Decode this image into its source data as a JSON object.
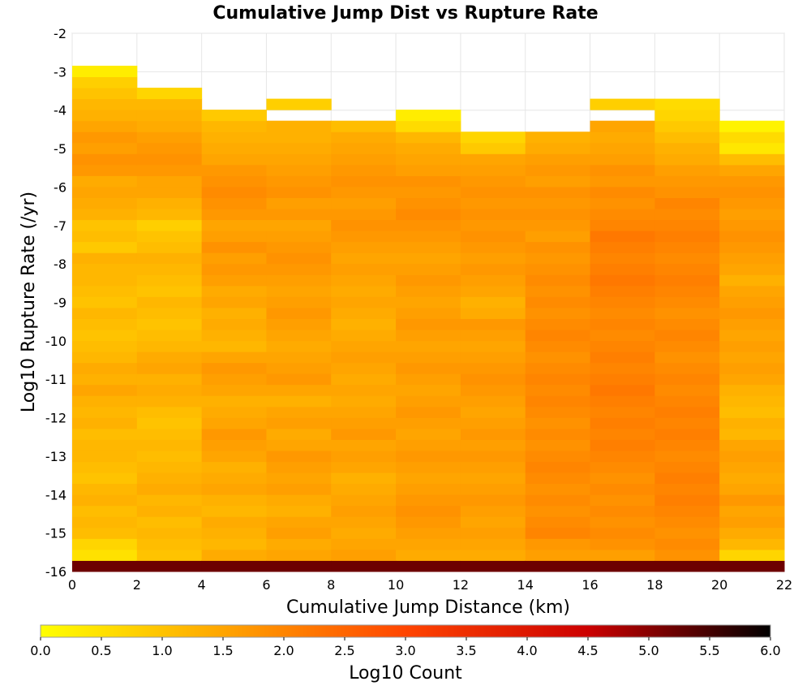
{
  "chart_data": {
    "type": "heatmap",
    "title": "Cumulative Jump Dist vs Rupture Rate",
    "xlabel": "Cumulative Jump Distance (km)",
    "ylabel": "Log10 Rupture Rate (/yr)",
    "xlim": [
      0,
      22
    ],
    "ylim": [
      -16,
      -2
    ],
    "x_ticks": [
      "0",
      "2",
      "4",
      "6",
      "8",
      "10",
      "12",
      "14",
      "16",
      "18",
      "20",
      "22"
    ],
    "y_ticks": [
      "-2",
      "-3",
      "-4",
      "-5",
      "-6",
      "-7",
      "-8",
      "-9",
      "-10",
      "-11",
      "-12",
      "-13",
      "-14",
      "-15",
      "-16"
    ],
    "x_bin_edges": [
      0,
      2,
      4,
      6,
      8,
      10,
      12,
      14,
      16,
      18,
      20,
      22
    ],
    "y_bin_size": 0.286,
    "y_bin_start": -16,
    "grid": true,
    "colorbar": {
      "label": "Log10 Count",
      "min": 0,
      "max": 6,
      "ticks": [
        "0.0",
        "0.5",
        "1.0",
        "1.5",
        "2.0",
        "2.5",
        "3.0",
        "3.5",
        "4.0",
        "4.5",
        "5.0",
        "5.5",
        "6.0"
      ],
      "colors": [
        "#ffff00",
        "#ffa500",
        "#ff4500",
        "#cc0000",
        "#000000"
      ]
    },
    "columns": [
      {
        "x_range": [
          0,
          2
        ],
        "top": -2.71,
        "values": [
          5.2,
          0.5,
          0.7,
          1.1,
          1.2,
          1.1,
          1.3,
          1.2,
          1.0,
          1.1,
          1.2,
          1.2,
          1.1,
          1.3,
          1.2,
          1.3,
          1.5,
          1.3,
          1.4,
          1.2,
          1.1,
          1.0,
          1.1,
          1.2,
          1.0,
          1.1,
          1.2,
          1.2,
          1.3,
          0.9,
          1.1,
          1.0,
          1.3,
          1.4,
          1.5,
          1.4,
          1.7,
          1.8,
          1.6,
          1.7,
          1.5,
          1.3,
          1.2,
          1.0,
          0.8,
          0.3
        ]
      },
      {
        "x_range": [
          2,
          4
        ],
        "top": -3.28,
        "values": [
          5.2,
          1.0,
          1.1,
          1.2,
          1.1,
          1.3,
          1.2,
          1.4,
          1.3,
          1.2,
          1.1,
          1.2,
          1.1,
          1.0,
          1.1,
          1.3,
          1.4,
          1.3,
          1.5,
          1.4,
          1.2,
          1.1,
          1.0,
          1.1,
          1.2,
          1.0,
          1.1,
          1.2,
          1.3,
          1.1,
          1.0,
          0.8,
          1.2,
          1.3,
          1.5,
          1.5,
          1.7,
          1.8,
          1.7,
          1.6,
          1.4,
          1.3,
          1.2,
          0.7
        ]
      },
      {
        "x_range": [
          4,
          6
        ],
        "top": -3.57,
        "values": [
          5.2,
          1.4,
          1.2,
          1.3,
          1.4,
          1.2,
          1.3,
          1.5,
          1.4,
          1.3,
          1.5,
          1.6,
          1.7,
          1.5,
          1.4,
          1.3,
          1.5,
          1.6,
          1.7,
          1.5,
          1.2,
          1.3,
          1.4,
          1.3,
          1.5,
          1.4,
          1.6,
          1.7,
          1.6,
          1.8,
          1.6,
          1.5,
          1.7,
          1.8,
          1.9,
          1.8,
          1.7,
          1.5,
          1.4,
          1.3,
          1.2,
          0.9
        ]
      },
      {
        "x_range": [
          6,
          8
        ],
        "top": -3.28,
        "values": [
          5.2,
          1.5,
          1.4,
          1.6,
          1.5,
          1.3,
          1.4,
          1.6,
          1.5,
          1.6,
          1.7,
          1.5,
          1.4,
          1.6,
          1.5,
          1.3,
          1.5,
          1.7,
          1.6,
          1.5,
          1.4,
          1.5,
          1.6,
          1.7,
          1.6,
          1.5,
          1.6,
          1.7,
          1.8,
          1.7,
          1.6,
          1.5,
          1.7,
          1.6,
          1.8,
          1.7,
          1.6,
          1.5,
          1.4,
          1.3,
          1.3,
          0.0,
          0.8
        ]
      },
      {
        "x_range": [
          8,
          10
        ],
        "top": -3.57,
        "values": [
          5.2,
          1.6,
          1.5,
          1.4,
          1.5,
          1.6,
          1.5,
          1.4,
          1.3,
          1.5,
          1.6,
          1.5,
          1.7,
          1.6,
          1.5,
          1.4,
          1.5,
          1.4,
          1.5,
          1.6,
          1.5,
          1.4,
          1.3,
          1.4,
          1.5,
          1.4,
          1.5,
          1.6,
          1.5,
          1.6,
          1.7,
          1.8,
          1.7,
          1.6,
          1.7,
          1.8,
          1.7,
          1.6,
          1.5,
          1.4,
          1.1
        ]
      },
      {
        "x_range": [
          10,
          12
        ],
        "top": -3.28,
        "values": [
          5.2,
          1.4,
          1.5,
          1.6,
          1.7,
          1.8,
          1.7,
          1.6,
          1.5,
          1.6,
          1.7,
          1.6,
          1.5,
          1.6,
          1.7,
          1.6,
          1.5,
          1.6,
          1.7,
          1.6,
          1.5,
          1.6,
          1.7,
          1.6,
          1.5,
          1.6,
          1.7,
          1.6,
          1.5,
          1.6,
          1.7,
          1.8,
          1.9,
          1.8,
          1.7,
          1.8,
          1.6,
          1.5,
          1.4,
          1.2,
          0.6,
          0.3
        ]
      },
      {
        "x_range": [
          12,
          14
        ],
        "top": -3.57,
        "values": [
          5.2,
          1.4,
          1.5,
          1.6,
          1.5,
          1.6,
          1.7,
          1.6,
          1.5,
          1.6,
          1.7,
          1.6,
          1.7,
          1.6,
          1.5,
          1.6,
          1.7,
          1.8,
          1.7,
          1.6,
          1.5,
          1.6,
          1.7,
          1.4,
          1.3,
          1.5,
          1.6,
          1.7,
          1.6,
          1.7,
          1.8,
          1.7,
          1.8,
          1.7,
          1.8,
          1.7,
          1.6,
          1.5,
          0.9,
          0.7
        ]
      },
      {
        "x_range": [
          14,
          16
        ],
        "top": -3.57,
        "values": [
          5.2,
          1.6,
          1.7,
          2.0,
          1.9,
          1.8,
          1.9,
          1.8,
          1.9,
          2.0,
          1.9,
          1.8,
          1.9,
          1.8,
          1.9,
          2.0,
          1.9,
          2.0,
          1.9,
          1.8,
          1.9,
          2.0,
          1.9,
          1.8,
          1.9,
          1.8,
          1.9,
          1.8,
          1.7,
          1.8,
          1.6,
          1.7,
          1.8,
          1.7,
          1.8,
          1.6,
          1.7,
          1.6,
          1.4,
          1.3
        ]
      },
      {
        "x_range": [
          16,
          18
        ],
        "top": -3.28,
        "values": [
          5.2,
          1.6,
          1.8,
          1.9,
          1.8,
          1.9,
          1.8,
          1.9,
          1.8,
          1.9,
          2.0,
          2.1,
          2.0,
          2.1,
          2.0,
          2.1,
          2.2,
          2.1,
          2.0,
          2.1,
          2.0,
          1.9,
          2.0,
          1.9,
          2.0,
          2.1,
          2.2,
          2.1,
          2.0,
          2.1,
          2.2,
          2.0,
          1.9,
          1.8,
          1.9,
          1.7,
          1.8,
          1.6,
          1.5,
          1.4,
          1.5,
          0.0,
          0.8
        ]
      },
      {
        "x_range": [
          18,
          20
        ],
        "top": -3.0,
        "values": [
          5.2,
          1.8,
          1.9,
          1.8,
          1.9,
          2.0,
          2.1,
          2.0,
          2.1,
          2.0,
          1.9,
          2.0,
          2.1,
          2.0,
          2.1,
          2.0,
          1.9,
          2.0,
          1.9,
          1.8,
          1.9,
          2.0,
          1.9,
          1.8,
          1.9,
          2.0,
          2.1,
          2.0,
          1.9,
          2.0,
          2.1,
          2.0,
          1.9,
          2.0,
          1.8,
          1.7,
          1.6,
          1.4,
          1.3,
          1.1,
          0.9,
          0.7,
          0.6
        ]
      },
      {
        "x_range": [
          20,
          22
        ],
        "top": -3.57,
        "values": [
          5.2,
          0.7,
          1.2,
          1.4,
          1.6,
          1.5,
          1.7,
          1.5,
          1.4,
          1.5,
          1.6,
          1.5,
          1.2,
          1.3,
          1.1,
          1.2,
          1.3,
          1.5,
          1.6,
          1.5,
          1.6,
          1.5,
          1.6,
          1.7,
          1.6,
          1.5,
          1.3,
          1.5,
          1.6,
          1.7,
          1.8,
          1.7,
          1.6,
          1.7,
          1.8,
          1.7,
          1.5,
          1.1,
          0.4,
          0.6,
          0.2
        ]
      }
    ]
  }
}
